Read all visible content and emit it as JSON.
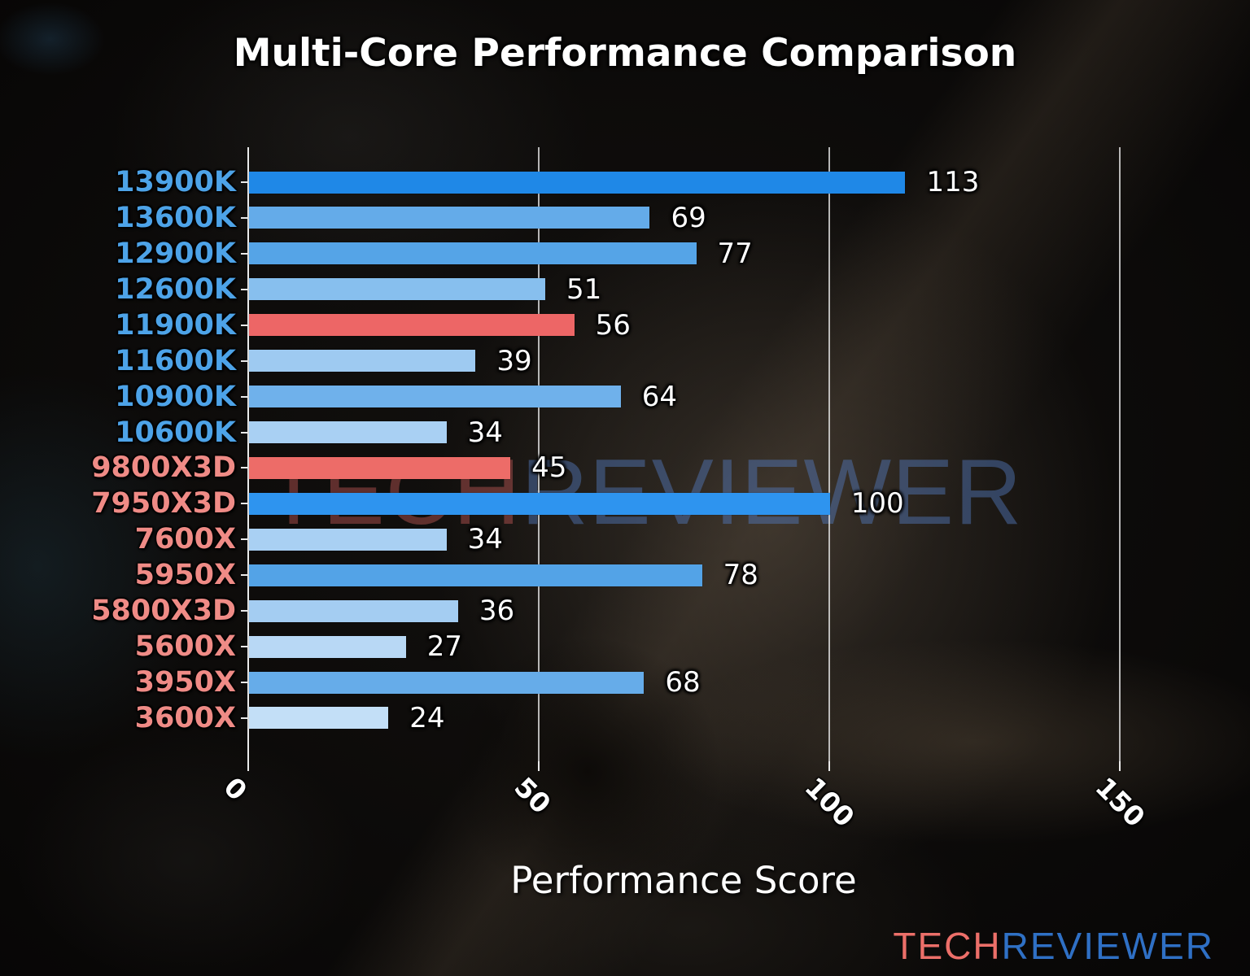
{
  "title": "Multi-Core Performance Comparison",
  "xlabel": "Performance Score",
  "watermark": {
    "part1": "TECH",
    "part2": "REVIEWER"
  },
  "logo": {
    "part1": "TECH",
    "part2": "REVIEWER"
  },
  "colors": {
    "intel_label": "#4da3e8",
    "amd_label": "#ef8b86",
    "highlight_red": "#ed6a66",
    "strong_blue": "#1f88e7",
    "grid": "#e5e5e5",
    "text": "#ffffff"
  },
  "chart_data": {
    "type": "bar",
    "orientation": "horizontal",
    "title": "Multi-Core Performance Comparison",
    "xlabel": "Performance Score",
    "ylabel": "",
    "grid": true,
    "xticks": [
      0,
      50,
      100,
      150
    ],
    "xlim": [
      0,
      166
    ],
    "categories": [
      "13900K",
      "13600K",
      "12900K",
      "12600K",
      "11900K",
      "11600K",
      "10900K",
      "10600K",
      "9800X3D",
      "7950X3D",
      "7600X",
      "5950X",
      "5800X3D",
      "5600X",
      "3950X",
      "3600X"
    ],
    "values": [
      113,
      69,
      77,
      51,
      56,
      39,
      64,
      34,
      45,
      100,
      34,
      78,
      36,
      27,
      68,
      24
    ],
    "bar_colors": [
      "#1f88e7",
      "#64abe9",
      "#55a4e7",
      "#87bfee",
      "#ed6666",
      "#9ecaf1",
      "#6fb1eb",
      "#a9d0f3",
      "#ed6c68",
      "#2e94ef",
      "#a9d0f3",
      "#53a3e7",
      "#a4cdf2",
      "#b8d8f5",
      "#66ace9",
      "#c3dff7"
    ],
    "brands": [
      "intel",
      "intel",
      "intel",
      "intel",
      "intel",
      "intel",
      "intel",
      "intel",
      "amd",
      "amd",
      "amd",
      "amd",
      "amd",
      "amd",
      "amd",
      "amd"
    ],
    "label_colors": [
      "#4da3e8",
      "#4da3e8",
      "#4da3e8",
      "#4da3e8",
      "#4da3e8",
      "#4da3e8",
      "#4da3e8",
      "#4da3e8",
      "#ef8b86",
      "#ef8b86",
      "#ef8b86",
      "#ef8b86",
      "#ef8b86",
      "#ef8b86",
      "#ef8b86",
      "#ef8b86"
    ]
  }
}
